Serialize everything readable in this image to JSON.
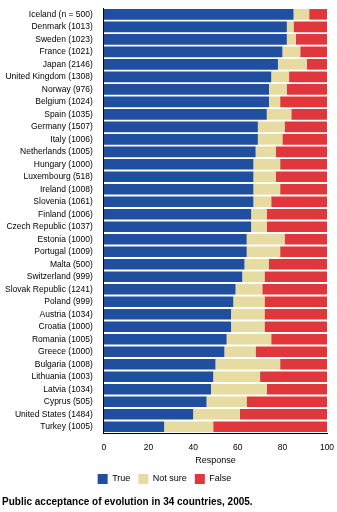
{
  "chart_data": {
    "type": "bar",
    "title": "Public acceptance of evolution in 34 countries, 2005.",
    "x_label": "Response",
    "orientation": "horizontal",
    "stacked": true,
    "grid": false,
    "legend": "bottom",
    "categories": [
      "Iceland (n = 500)",
      "Denmark (1013)",
      "Sweden (1023)",
      "France (1021)",
      "Japan (2146)",
      "United Kingdom (1308)",
      "Norway (976)",
      "Belgium (1024)",
      "Spain (1035)",
      "Germany (1507)",
      "Italy (1006)",
      "Netherlands (1005)",
      "Hungary (1000)",
      "Luxembourg (518)",
      "Ireland (1008)",
      "Slovenia (1061)",
      "Finland (1006)",
      "Czech Republic (1037)",
      "Estonia (1000)",
      "Portugal (1009)",
      "Malta (500)",
      "Switzerland (999)",
      "Slovak Republic (1241)",
      "Poland (999)",
      "Austria (1034)",
      "Croatia (1000)",
      "Romania (1005)",
      "Greece (1000)",
      "Bulgaria (1008)",
      "Lithuania (1003)",
      "Latvia (1034)",
      "Cyprus (505)",
      "United States (1484)",
      "Turkey (1005)"
    ],
    "series": [
      {
        "name": "True",
        "color": "#1f4f9e",
        "values": [
          85,
          82,
          82,
          80,
          78,
          75,
          74,
          74,
          73,
          69,
          69,
          68,
          67,
          67,
          67,
          67,
          66,
          66,
          64,
          64,
          63,
          62,
          59,
          58,
          57,
          57,
          55,
          54,
          50,
          49,
          48,
          46,
          40,
          27
        ]
      },
      {
        "name": "Not sure",
        "color": "#e6dba0",
        "values": [
          7,
          3,
          4,
          8,
          13,
          8,
          8,
          5,
          11,
          12,
          11,
          9,
          12,
          10,
          12,
          8,
          7,
          7,
          17,
          15,
          11,
          10,
          12,
          14,
          15,
          15,
          20,
          14,
          29,
          21,
          25,
          18,
          21,
          22
        ]
      },
      {
        "name": "False",
        "color": "#e0373d",
        "values": [
          8,
          15,
          14,
          12,
          9,
          17,
          18,
          21,
          16,
          19,
          20,
          23,
          21,
          23,
          21,
          25,
          27,
          27,
          19,
          21,
          26,
          28,
          29,
          28,
          28,
          28,
          25,
          32,
          21,
          30,
          27,
          36,
          39,
          51
        ]
      }
    ],
    "xlim": [
      0,
      100
    ],
    "xticks": [
      0,
      20,
      40,
      60,
      80,
      100
    ]
  }
}
